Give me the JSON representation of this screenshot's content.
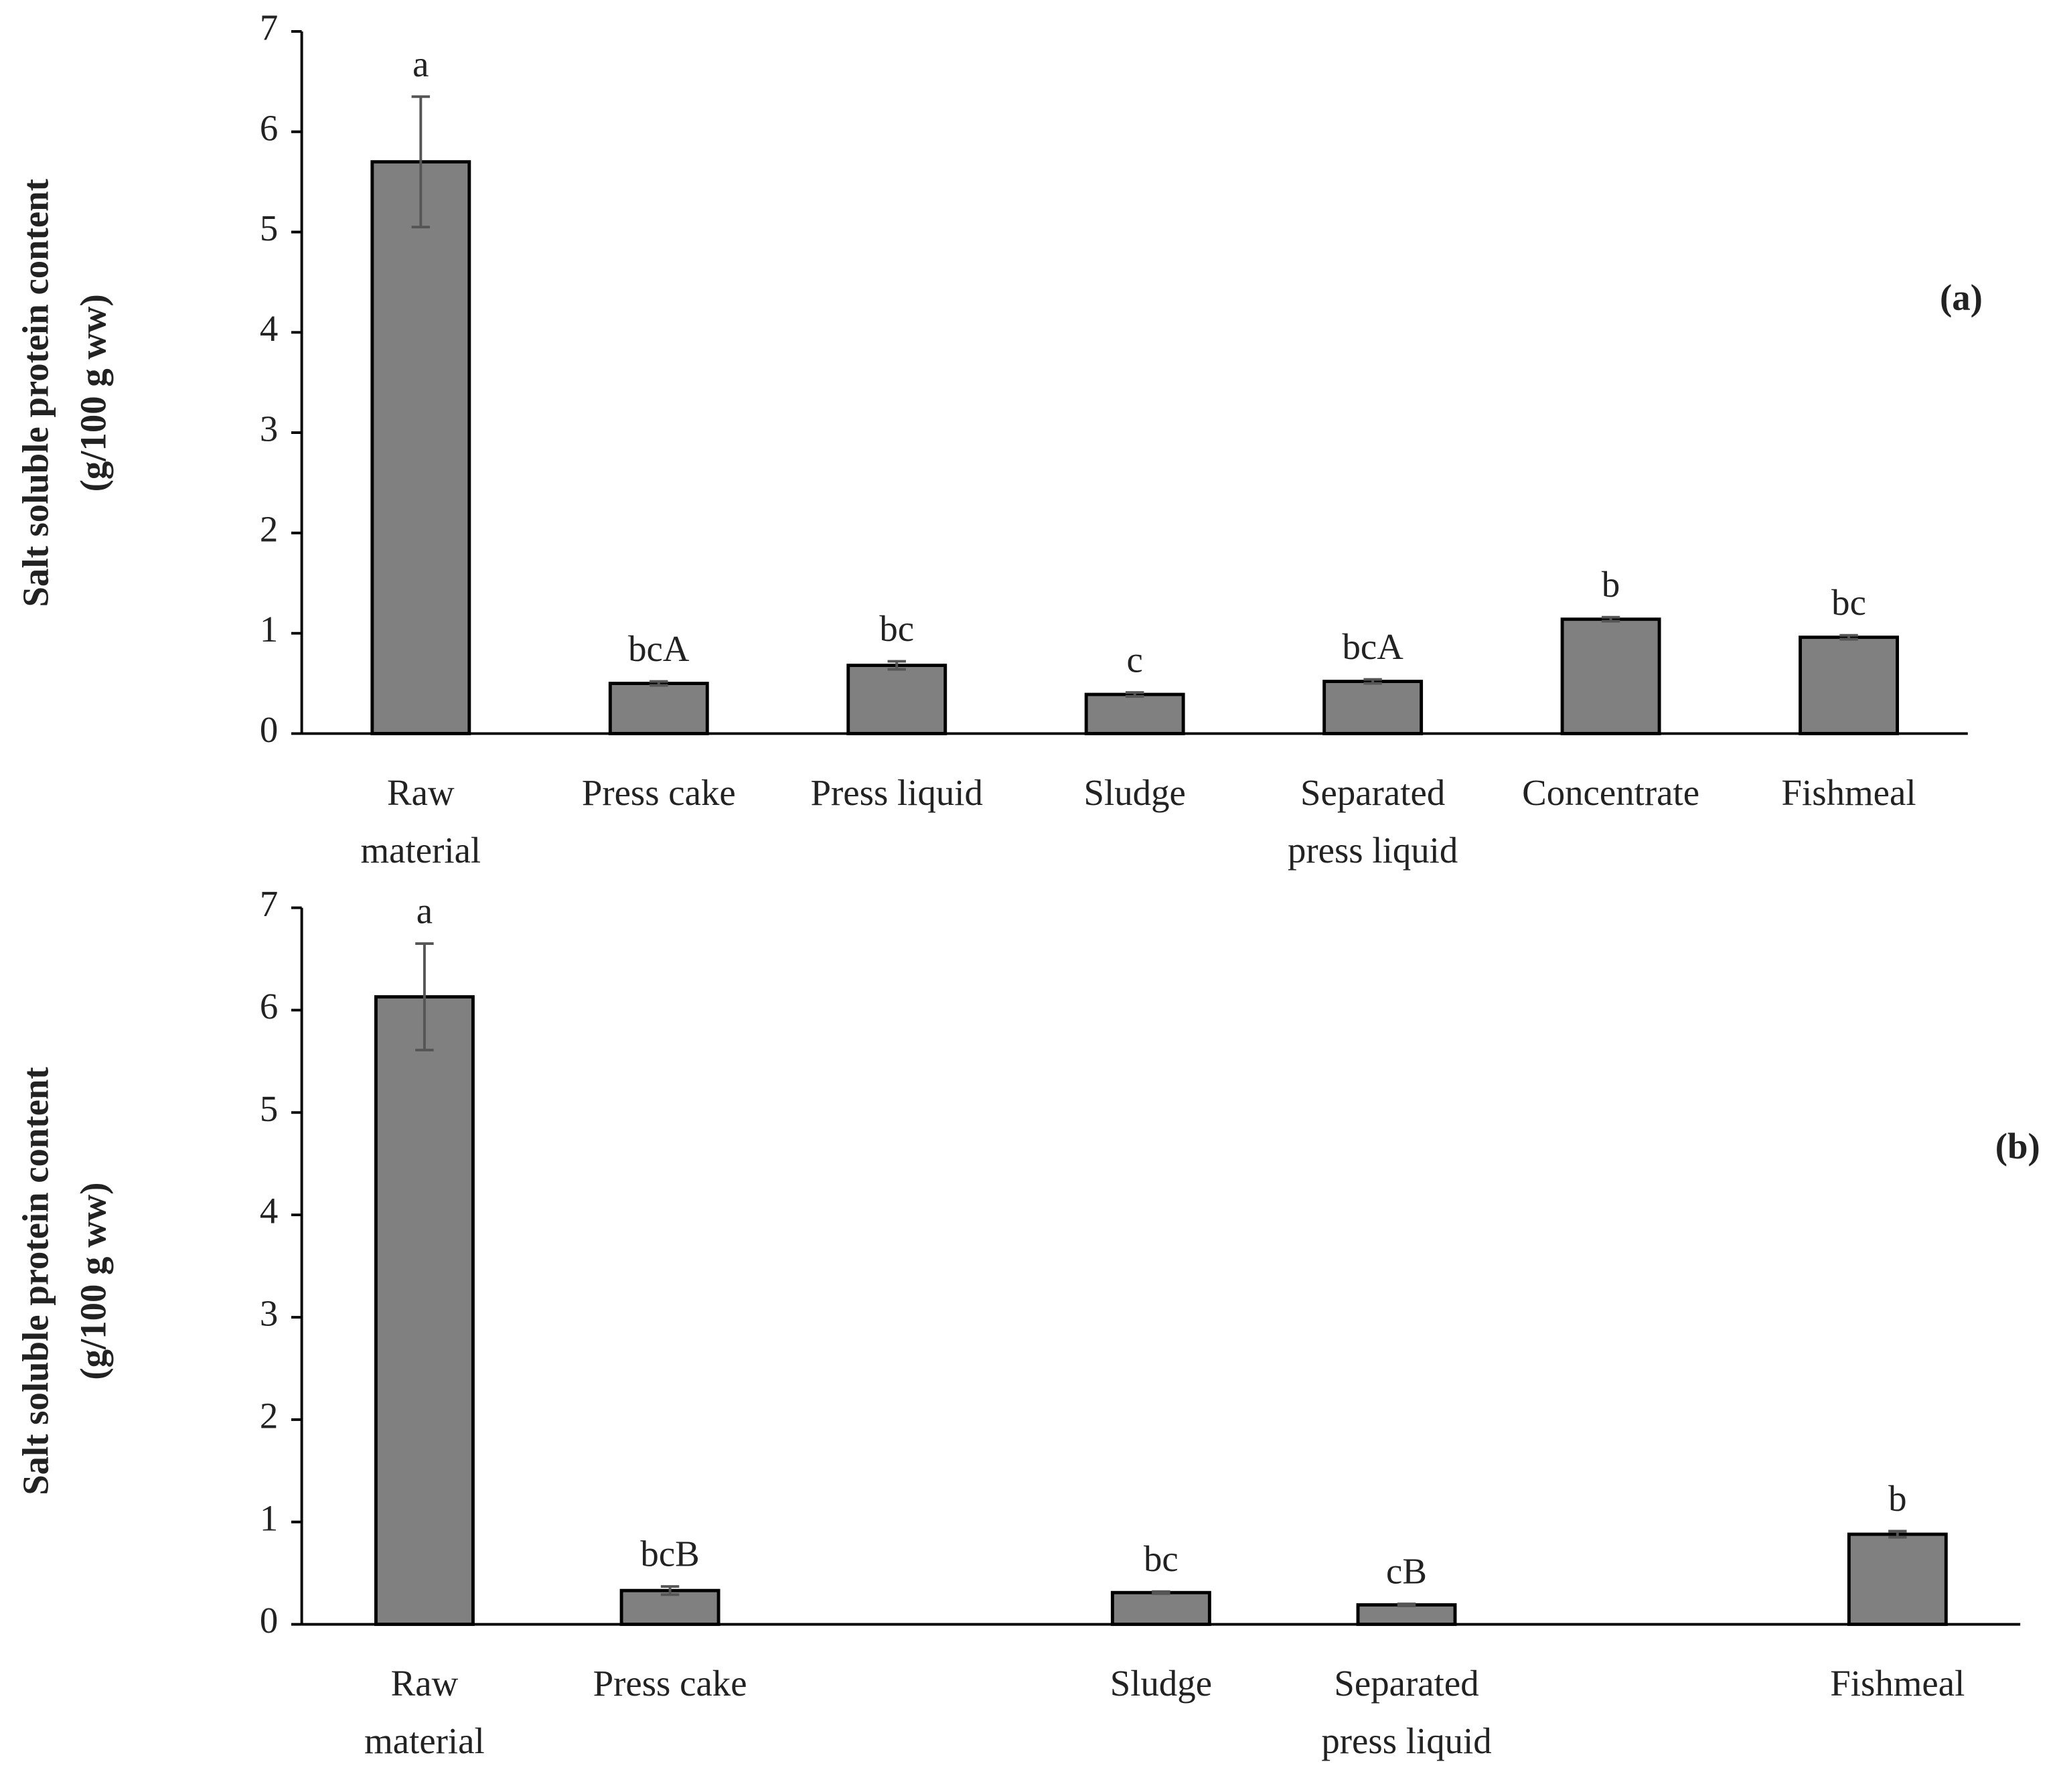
{
  "chart_data": [
    {
      "type": "bar",
      "ylabel": [
        "Salt soluble protein content",
        "(g/100 g ww)"
      ],
      "panel_label": "(a)",
      "categories": [
        [
          "Raw",
          "material"
        ],
        [
          "Press cake"
        ],
        [
          "Press liquid"
        ],
        [
          "Sludge"
        ],
        [
          "Separated",
          "press liquid"
        ],
        [
          "Concentrate"
        ],
        [
          "Fishmeal"
        ]
      ],
      "values": [
        5.7,
        0.5,
        0.68,
        0.39,
        0.52,
        1.14,
        0.96
      ],
      "errors": [
        0.65,
        0.02,
        0.04,
        0.02,
        0.02,
        0.02,
        0.02
      ],
      "letters": [
        "a",
        "bcA",
        "bc",
        "c",
        "bcA",
        "b",
        "bc"
      ],
      "color": "#808080",
      "ylim": [
        0,
        7
      ],
      "yticks": [
        0,
        1,
        2,
        3,
        4,
        5,
        6,
        7
      ]
    },
    {
      "type": "bar",
      "ylabel": [
        "Salt soluble protein content",
        "(g/100 g ww)"
      ],
      "panel_label": "(b)",
      "categories": [
        [
          "Raw",
          "material"
        ],
        [
          "Press cake"
        ],
        null,
        [
          "Sludge"
        ],
        [
          "Separated",
          "press liquid"
        ],
        null,
        [
          "Fishmeal"
        ]
      ],
      "values": [
        6.13,
        0.33,
        null,
        0.31,
        0.19,
        null,
        0.88
      ],
      "errors": [
        0.52,
        0.04,
        null,
        0.01,
        0.01,
        null,
        0.03
      ],
      "letters": [
        "a",
        "bcB",
        null,
        "bc",
        "cB",
        null,
        "b"
      ],
      "color": "#808080",
      "ylim": [
        0,
        7
      ],
      "yticks": [
        0,
        1,
        2,
        3,
        4,
        5,
        6,
        7
      ]
    }
  ]
}
